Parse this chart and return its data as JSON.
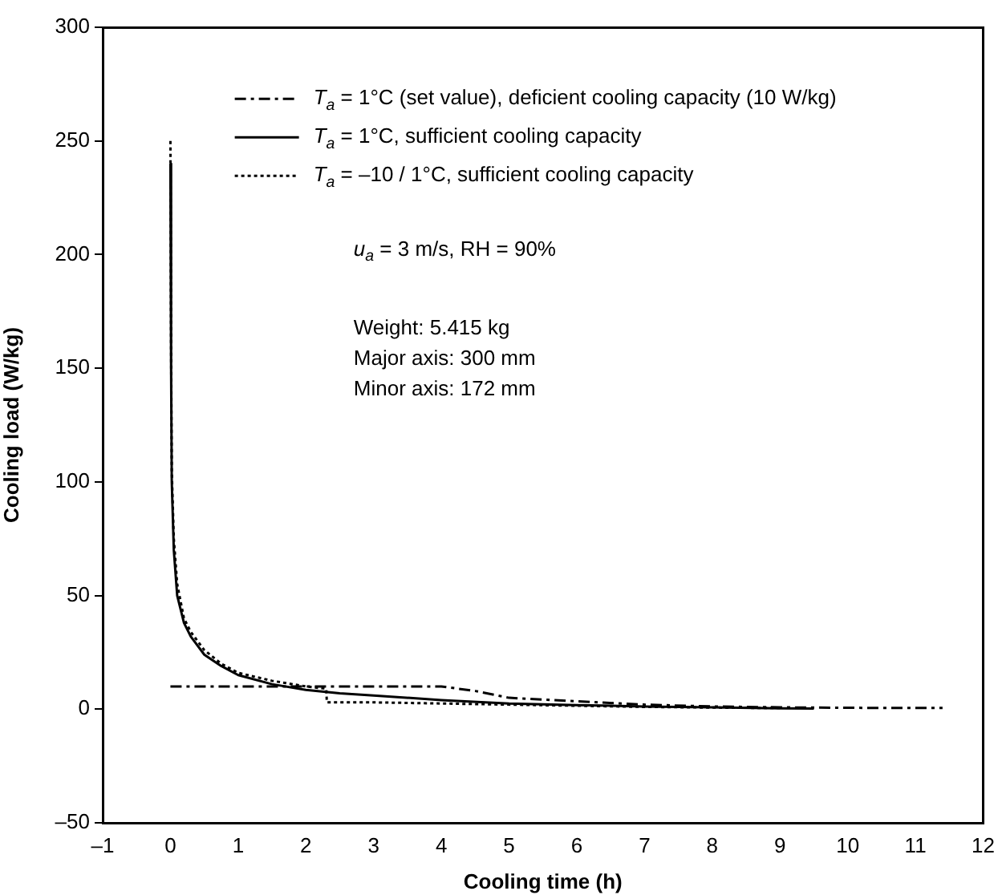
{
  "chart_data": {
    "type": "line",
    "xlabel": "Cooling time (h)",
    "ylabel": "Cooling load (W/kg)",
    "xlim": [
      -1,
      12
    ],
    "xticks": [
      {
        "value": -1,
        "label": "–1"
      },
      0,
      1,
      2,
      3,
      4,
      5,
      6,
      7,
      8,
      9,
      10,
      11,
      12
    ],
    "ylim": [
      -50,
      300
    ],
    "yticks": [
      {
        "value": -50,
        "label": "–50"
      },
      0,
      50,
      100,
      150,
      200,
      250,
      300
    ],
    "grid": false,
    "legend": "top right",
    "marker": "none",
    "series": [
      {
        "name": "T$_{a}$ = 1°C (set value), deficient cooling capacity (10 W/kg)",
        "color": "#000000",
        "line_style": "dashed",
        "x": [
          0,
          0.5,
          1,
          2,
          3,
          4,
          4.5,
          5,
          6,
          7,
          8,
          9,
          10,
          11.4
        ],
        "values": [
          10,
          10,
          10,
          10,
          10,
          10,
          8,
          5,
          3.5,
          2,
          1.2,
          0.8,
          0.6,
          0.5
        ]
      },
      {
        "name": "T$_{a}$ = 1°C, sufficient cooling capacity",
        "color": "#000000",
        "line_style": "solid",
        "x": [
          0,
          0.01,
          0.02,
          0.05,
          0.1,
          0.2,
          0.3,
          0.5,
          0.75,
          1,
          1.5,
          2,
          2.5,
          3,
          4,
          5,
          6,
          7,
          8,
          9,
          9.5
        ],
        "values": [
          240,
          150,
          100,
          70,
          50,
          38,
          32,
          24,
          19,
          15,
          11,
          8.5,
          7,
          6,
          4,
          2.5,
          1.8,
          1.2,
          0.8,
          0.4,
          0.3
        ]
      },
      {
        "name": "T$_{a}$ = –10 / 1°C, sufficient cooling capacity",
        "color": "#000000",
        "line_style": "dotted",
        "x": [
          0,
          0.01,
          0.02,
          0.05,
          0.1,
          0.2,
          0.3,
          0.5,
          0.75,
          1,
          1.5,
          2,
          2.3,
          2.31,
          3,
          4,
          5,
          6,
          7,
          8,
          9
        ],
        "values": [
          250,
          160,
          105,
          75,
          55,
          40,
          34,
          26,
          20,
          16,
          12.5,
          10,
          9,
          3,
          3,
          2.5,
          2,
          1.5,
          1,
          0.7,
          0.5
        ]
      }
    ],
    "annotations": [
      "u$_{a}$ = 3 m/s, RH = 90%",
      "Weight: 5.415 kg",
      "Major axis: 300 mm",
      "Minor axis: 172 mm"
    ]
  }
}
